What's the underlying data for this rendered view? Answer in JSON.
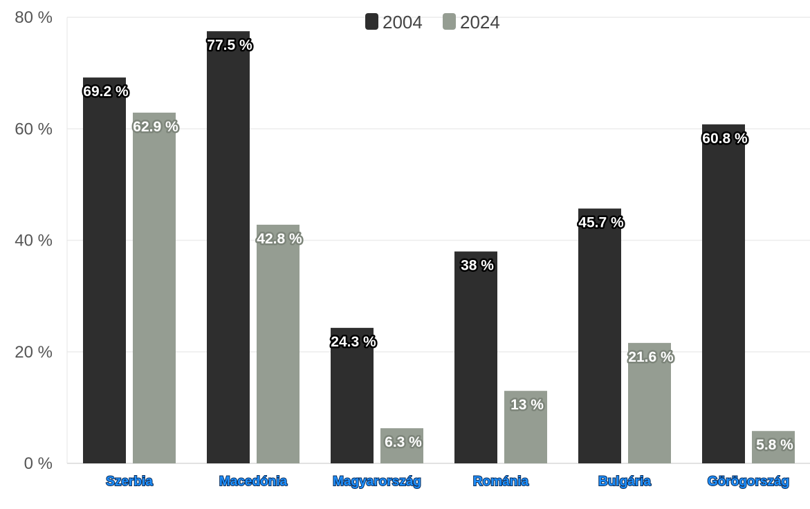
{
  "chart_data": {
    "type": "bar",
    "categories": [
      "Szerbia",
      "Macedónia",
      "Magyarország",
      "Románia",
      "Bulgária",
      "Görögország"
    ],
    "series": [
      {
        "name": "2004",
        "color": "#2e2e2e",
        "values": [
          69.2,
          77.5,
          24.3,
          38,
          45.7,
          60.8
        ],
        "labels": [
          "69.2 %",
          "77.5 %",
          "24.3 %",
          "38 %",
          "45.7 %",
          "60.8 %"
        ]
      },
      {
        "name": "2024",
        "color": "#959d92",
        "values": [
          62.9,
          42.8,
          6.3,
          13,
          21.6,
          5.8
        ],
        "labels": [
          "62.9 %",
          "42.8 %",
          "6.3 %",
          "13 %",
          "21.6 %",
          "5.8 %"
        ]
      }
    ],
    "ylim": [
      0,
      80
    ],
    "yticks": [
      0,
      20,
      40,
      60,
      80
    ],
    "ytick_labels": [
      "0 %",
      "20 %",
      "40 %",
      "60 %",
      "80 %"
    ],
    "title": "",
    "xlabel": "",
    "ylabel": "",
    "grid": true,
    "legend_position": "top-center"
  }
}
